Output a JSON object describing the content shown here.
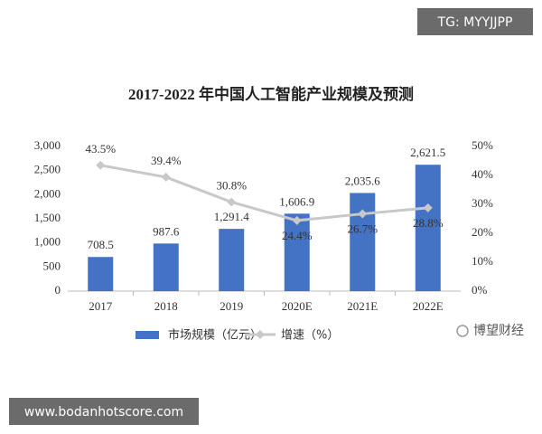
{
  "chart_data": {
    "type": "bar_line",
    "title": "2017-2022 年中国人工智能产业规模及预测",
    "categories": [
      "2017",
      "2018",
      "2019",
      "2020E",
      "2021E",
      "2022E"
    ],
    "series": [
      {
        "name": "市场规模（亿元）",
        "type": "bar",
        "color": "#4472c4",
        "values": [
          708.5,
          987.6,
          1291.4,
          1606.9,
          2035.6,
          2621.5
        ],
        "value_labels": [
          "708.5",
          "987.6",
          "1,291.4",
          "1,606.9",
          "2,035.6",
          "2,621.5"
        ]
      },
      {
        "name": "增速（%）",
        "type": "line",
        "color": "#c8c8c8",
        "axis": "y2",
        "values": [
          43.5,
          39.4,
          30.8,
          24.4,
          26.7,
          28.8
        ],
        "value_labels": [
          "43.5%",
          "39.4%",
          "30.8%",
          "24.4%",
          "26.7%",
          "28.8%"
        ]
      }
    ],
    "ylim": [
      0,
      3000
    ],
    "yticks": [
      0,
      500,
      {
        "value": 1000,
        "label": "1,000"
      },
      {
        "value": 1500,
        "label": "1,500"
      },
      {
        "value": 2000,
        "label": "2,000"
      },
      {
        "value": 2500,
        "label": "2,500"
      },
      {
        "value": 3000,
        "label": "3,000"
      }
    ],
    "y2lim": [
      0,
      50
    ],
    "y2ticks": [
      {
        "value": 0,
        "label": "0%"
      },
      {
        "value": 10,
        "label": "10%"
      },
      {
        "value": 20,
        "label": "20%"
      },
      {
        "value": 30,
        "label": "30%"
      },
      {
        "value": 40,
        "label": "40%"
      },
      {
        "value": 50,
        "label": "50%"
      }
    ],
    "grid": false
  },
  "overlays": {
    "channel": "TG: MYYJJPP",
    "website": "www.bodanhotscore.com",
    "source": "博望财经"
  }
}
